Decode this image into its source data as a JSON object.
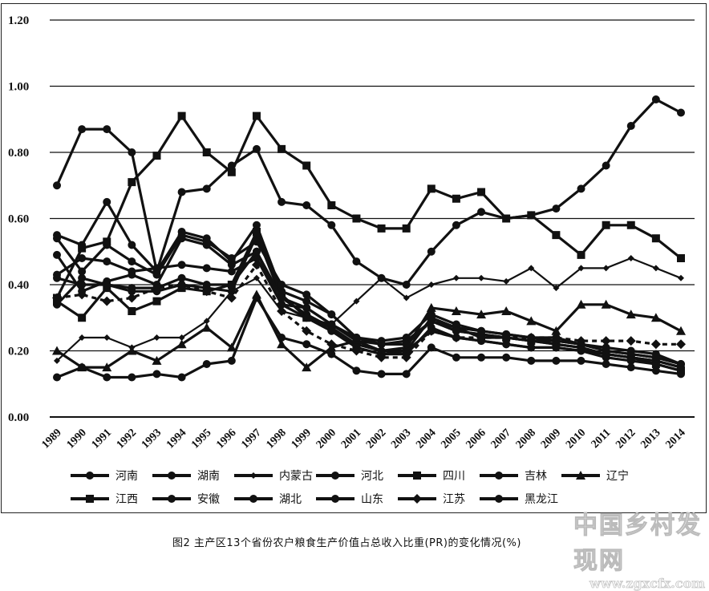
{
  "chart_data": {
    "type": "line",
    "title": "图2  主产区13个省份农户粮食生产价值占总收入比重(PR)的变化情况(%)",
    "xlabel": "",
    "ylabel": "",
    "ylim": [
      0,
      1.2
    ],
    "yticks": [
      "0.00",
      "0.20",
      "0.40",
      "0.60",
      "0.80",
      "1.00",
      "1.20"
    ],
    "grid": true,
    "legend_position": "bottom",
    "x": [
      "1989",
      "1990",
      "1991",
      "1992",
      "1993",
      "1994",
      "1995",
      "1996",
      "1997",
      "1998",
      "1999",
      "2000",
      "2001",
      "2002",
      "2003",
      "2004",
      "2005",
      "2006",
      "2007",
      "2008",
      "2009",
      "2010",
      "2011",
      "2012",
      "2013",
      "2014"
    ],
    "series": [
      {
        "name": "河南",
        "marker": "circle",
        "values": [
          0.7,
          0.87,
          0.87,
          0.8,
          0.44,
          0.68,
          0.69,
          0.76,
          0.81,
          0.65,
          0.64,
          0.58,
          0.47,
          0.42,
          0.4,
          0.5,
          0.58,
          0.62,
          0.6,
          0.61,
          0.63,
          0.69,
          0.76,
          0.88,
          0.96,
          0.92
        ]
      },
      {
        "name": "湖南",
        "marker": "circle",
        "values": [
          0.55,
          0.52,
          0.65,
          0.52,
          0.44,
          0.56,
          0.54,
          0.47,
          0.58,
          0.38,
          0.35,
          0.31,
          0.24,
          0.23,
          0.24,
          0.31,
          0.28,
          0.26,
          0.25,
          0.24,
          0.24,
          0.22,
          0.21,
          0.2,
          0.19,
          0.16
        ]
      },
      {
        "name": "内蒙古",
        "marker": "small-diamond",
        "values": [
          0.17,
          0.24,
          0.24,
          0.21,
          0.24,
          0.24,
          0.29,
          0.38,
          0.42,
          0.32,
          0.3,
          0.28,
          0.35,
          0.42,
          0.36,
          0.4,
          0.42,
          0.42,
          0.41,
          0.45,
          0.39,
          0.45,
          0.45,
          0.48,
          0.45,
          0.42
        ]
      },
      {
        "name": "河北",
        "marker": "circle",
        "values": [
          0.43,
          0.48,
          0.47,
          0.44,
          0.45,
          0.46,
          0.45,
          0.44,
          0.48,
          0.34,
          0.33,
          0.28,
          0.23,
          0.22,
          0.22,
          0.29,
          0.27,
          0.26,
          0.25,
          0.24,
          0.23,
          0.22,
          0.2,
          0.19,
          0.18,
          0.16
        ]
      },
      {
        "name": "四川",
        "marker": "square",
        "values": [
          0.36,
          0.51,
          0.53,
          0.71,
          0.79,
          0.91,
          0.8,
          0.74,
          0.91,
          0.81,
          0.76,
          0.64,
          0.6,
          0.57,
          0.57,
          0.69,
          0.66,
          0.68,
          0.6,
          0.61,
          0.55,
          0.49,
          0.58,
          0.58,
          0.54,
          0.48
        ]
      },
      {
        "name": "吉林",
        "marker": "circle",
        "values": [
          0.34,
          0.42,
          0.4,
          0.38,
          0.38,
          0.4,
          0.39,
          0.38,
          0.55,
          0.36,
          0.31,
          0.27,
          0.22,
          0.2,
          0.2,
          0.26,
          0.24,
          0.23,
          0.22,
          0.21,
          0.21,
          0.2,
          0.19,
          0.18,
          0.17,
          0.15
        ]
      },
      {
        "name": "辽宁",
        "marker": "triangle",
        "values": [
          0.2,
          0.15,
          0.15,
          0.2,
          0.17,
          0.22,
          0.27,
          0.21,
          0.37,
          0.22,
          0.15,
          0.21,
          0.23,
          0.2,
          0.21,
          0.33,
          0.32,
          0.31,
          0.32,
          0.29,
          0.26,
          0.34,
          0.34,
          0.31,
          0.3,
          0.26
        ]
      },
      {
        "name": "江西",
        "marker": "square",
        "values": [
          0.35,
          0.3,
          0.39,
          0.32,
          0.35,
          0.39,
          0.38,
          0.4,
          0.56,
          0.37,
          0.3,
          0.27,
          0.21,
          0.19,
          0.2,
          0.3,
          0.27,
          0.24,
          0.24,
          0.23,
          0.22,
          0.21,
          0.19,
          0.18,
          0.16,
          0.14
        ]
      },
      {
        "name": "安徽",
        "marker": "circle",
        "values": [
          0.49,
          0.38,
          0.41,
          0.43,
          0.4,
          0.54,
          0.52,
          0.46,
          0.5,
          0.36,
          0.33,
          0.28,
          0.24,
          0.22,
          0.23,
          0.29,
          0.26,
          0.25,
          0.24,
          0.23,
          0.22,
          0.21,
          0.19,
          0.18,
          0.17,
          0.15
        ]
      },
      {
        "name": "湖北",
        "marker": "circle",
        "values": [
          0.54,
          0.44,
          0.52,
          0.47,
          0.43,
          0.55,
          0.53,
          0.48,
          0.53,
          0.4,
          0.37,
          0.31,
          0.24,
          0.22,
          0.22,
          0.29,
          0.26,
          0.25,
          0.24,
          0.23,
          0.23,
          0.22,
          0.2,
          0.19,
          0.18,
          0.16
        ]
      },
      {
        "name": "山东",
        "marker": "circle",
        "values": [
          0.42,
          0.4,
          0.4,
          0.39,
          0.39,
          0.42,
          0.4,
          0.4,
          0.5,
          0.34,
          0.3,
          0.26,
          0.21,
          0.19,
          0.19,
          0.27,
          0.24,
          0.23,
          0.22,
          0.21,
          0.21,
          0.2,
          0.18,
          0.17,
          0.16,
          0.14
        ]
      },
      {
        "name": "江苏",
        "marker": "diamond",
        "values": [
          0.36,
          0.37,
          0.35,
          0.36,
          0.39,
          0.4,
          0.38,
          0.36,
          0.46,
          0.32,
          0.26,
          0.22,
          0.2,
          0.18,
          0.18,
          0.26,
          0.24,
          0.24,
          0.24,
          0.24,
          0.24,
          0.23,
          0.23,
          0.23,
          0.22,
          0.22
        ]
      },
      {
        "name": "黑龙江",
        "marker": "circle",
        "values": [
          0.12,
          0.15,
          0.12,
          0.12,
          0.13,
          0.12,
          0.16,
          0.17,
          0.36,
          0.24,
          0.22,
          0.19,
          0.14,
          0.13,
          0.13,
          0.21,
          0.18,
          0.18,
          0.18,
          0.17,
          0.17,
          0.17,
          0.16,
          0.15,
          0.14,
          0.13
        ]
      }
    ]
  },
  "figure": {
    "caption": "图2  主产区13个省份农户粮食生产价值占总收入比重(PR)的变化情况(%)",
    "watermark_line1": "中国乡村发现网",
    "watermark_line2": "www.zgxcfx.com"
  },
  "legend": {
    "row1": [
      "河南",
      "湖南",
      "内蒙古",
      "河北",
      "四川",
      "吉林",
      "辽宁"
    ],
    "row2": [
      "江西",
      "安徽",
      "湖北",
      "山东",
      "江苏",
      "黑龙江"
    ]
  },
  "colors": {
    "line": "#111111",
    "grid": "#111111",
    "background": "#ffffff"
  }
}
